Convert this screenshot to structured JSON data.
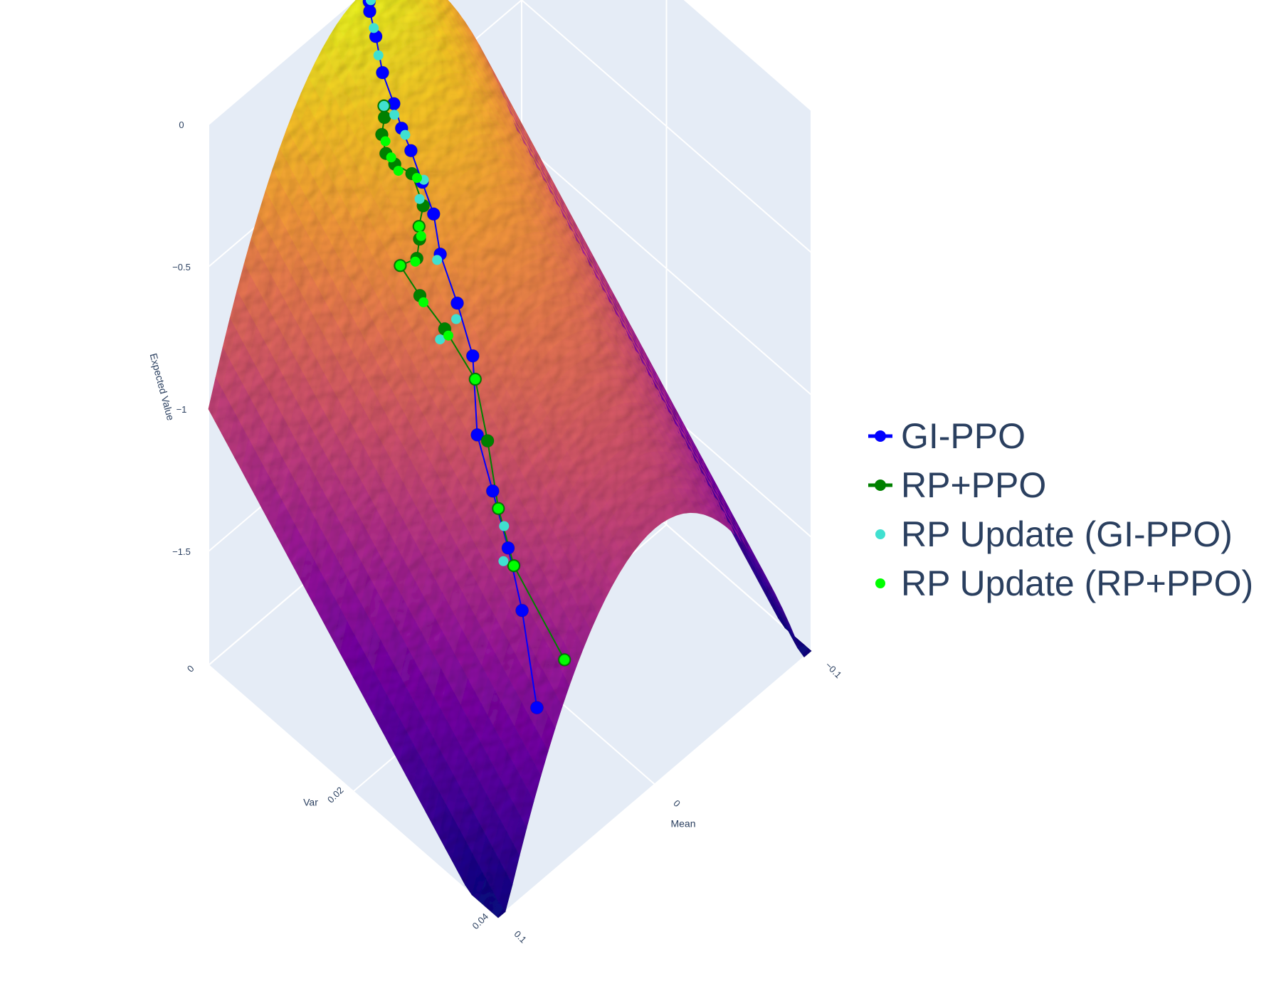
{
  "chart_data": {
    "type": "surface3d",
    "axes": {
      "x": {
        "label": "Mean",
        "ticks": [
          -0.1,
          0,
          0.1
        ],
        "tick_labels": [
          "−0.1",
          "0",
          "0.1"
        ],
        "range": [
          -0.1,
          0.1
        ]
      },
      "y": {
        "label": "Var",
        "ticks": [
          0,
          0.02,
          0.04
        ],
        "tick_labels": [
          "0",
          "0.02",
          "0.04"
        ],
        "range": [
          0,
          0.04
        ]
      },
      "z": {
        "label": "Expected Value",
        "ticks": [
          0,
          -0.5,
          -1,
          -1.5
        ],
        "tick_labels": [
          "0",
          "−0.5",
          "−1",
          "−1.5"
        ],
        "range": [
          -1.9,
          0
        ]
      }
    },
    "surface": {
      "description_fn": "z = -100*mean^2 - 25*var (approx)",
      "colorscale": [
        "#0d0887",
        "#46039f",
        "#7201a8",
        "#9c179e",
        "#bd3786",
        "#d8576b",
        "#ed7953",
        "#fb9f3a",
        "#fdca26",
        "#f0f921"
      ]
    },
    "series": [
      {
        "name": "GI-PPO",
        "mode": "lines+markers",
        "color": "#0000ff",
        "points": [
          [
            0.0,
            0.0005
          ],
          [
            0.002,
            0.001
          ],
          [
            0.004,
            0.0015
          ],
          [
            0.007,
            0.003
          ],
          [
            0.012,
            0.005
          ],
          [
            0.014,
            0.007
          ],
          [
            0.016,
            0.0085
          ],
          [
            0.017,
            0.01
          ],
          [
            0.019,
            0.012
          ],
          [
            0.021,
            0.014
          ],
          [
            0.026,
            0.016
          ],
          [
            0.029,
            0.019
          ],
          [
            0.033,
            0.022
          ],
          [
            0.044,
            0.025
          ],
          [
            0.048,
            0.028
          ],
          [
            0.052,
            0.031
          ],
          [
            0.057,
            0.034
          ],
          [
            0.066,
            0.038
          ]
        ]
      },
      {
        "name": "RP+PPO",
        "mode": "lines+markers",
        "color": "#008000",
        "points": [
          [
            0.018,
            0.0065
          ],
          [
            0.02,
            0.007
          ],
          [
            0.024,
            0.0075
          ],
          [
            0.026,
            0.0085
          ],
          [
            0.025,
            0.0095
          ],
          [
            0.021,
            0.011
          ],
          [
            0.023,
            0.013
          ],
          [
            0.028,
            0.0135
          ],
          [
            0.03,
            0.014
          ],
          [
            0.034,
            0.0145
          ],
          [
            0.04,
            0.0135
          ],
          [
            0.039,
            0.016
          ],
          [
            0.037,
            0.019
          ],
          [
            0.036,
            0.023
          ],
          [
            0.042,
            0.026
          ],
          [
            0.049,
            0.029
          ],
          [
            0.053,
            0.032
          ],
          [
            0.053,
            0.039
          ]
        ]
      },
      {
        "name": "RP Update (GI-PPO)",
        "mode": "markers",
        "color": "#40e0d0",
        "points": [
          [
            -0.001,
            0.0005
          ],
          [
            0.001,
            0.001
          ],
          [
            0.006,
            0.0025
          ],
          [
            0.01,
            0.004
          ],
          [
            0.018,
            0.0065
          ],
          [
            0.016,
            0.0075
          ],
          [
            0.016,
            0.009
          ],
          [
            0.018,
            0.012
          ],
          [
            0.023,
            0.0125
          ],
          [
            0.028,
            0.016
          ],
          [
            0.032,
            0.0195
          ],
          [
            0.04,
            0.019
          ],
          [
            0.05,
            0.03
          ],
          [
            0.055,
            0.031
          ]
        ]
      },
      {
        "name": "RP Update (RP+PPO)",
        "mode": "markers",
        "color": "#00ff00",
        "points": [
          [
            0.024,
            0.008
          ],
          [
            0.025,
            0.009
          ],
          [
            0.025,
            0.01
          ],
          [
            0.02,
            0.0115
          ],
          [
            0.028,
            0.0135
          ],
          [
            0.029,
            0.014
          ],
          [
            0.035,
            0.0145
          ],
          [
            0.04,
            0.0135
          ],
          [
            0.039,
            0.0165
          ],
          [
            0.037,
            0.0195
          ],
          [
            0.036,
            0.023
          ],
          [
            0.049,
            0.029
          ],
          [
            0.053,
            0.032
          ],
          [
            0.053,
            0.039
          ]
        ]
      }
    ],
    "legend": {
      "position": "right",
      "entries": [
        "GI-PPO",
        "RP+PPO",
        "RP Update (GI-PPO)",
        "RP Update (RP+PPO)"
      ]
    },
    "background": {
      "scene_bg": "#e5ecf6",
      "grid": "#ffffff",
      "text": "#2a3f5f"
    }
  }
}
